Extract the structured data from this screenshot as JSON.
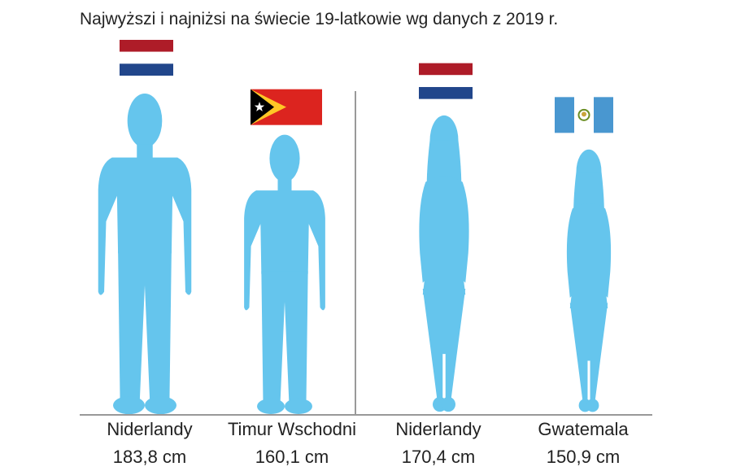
{
  "chart_data": {
    "type": "bar",
    "title": "Najwyższi i najniżsi na świecie 19-latkowie wg danych z 2019 r.",
    "categories": [
      "Niderlandy",
      "Timur Wschodni",
      "Niderlandy",
      "Gwatemala"
    ],
    "values": [
      183.8,
      160.1,
      170.4,
      150.9
    ],
    "value_labels": [
      "183,8 cm",
      "160,1 cm",
      "170,4 cm",
      "150,9 cm"
    ],
    "unit": "cm",
    "groups": [
      "male",
      "male",
      "female",
      "female"
    ],
    "flags": [
      "netherlands-flag",
      "timor-leste-flag",
      "netherlands-flag",
      "guatemala-flag"
    ],
    "icons": [
      "male-silhouette-icon",
      "male-silhouette-icon",
      "female-silhouette-icon",
      "female-silhouette-icon"
    ],
    "grid": false,
    "legend": "none"
  },
  "colors": {
    "silhouette": "#65c5ed",
    "axis": "#999999",
    "nl_red": "#ae1c28",
    "nl_blue": "#21468b",
    "tl_red": "#dc241f",
    "tl_yellow": "#ffc726",
    "gt_blue": "#4997d0"
  }
}
